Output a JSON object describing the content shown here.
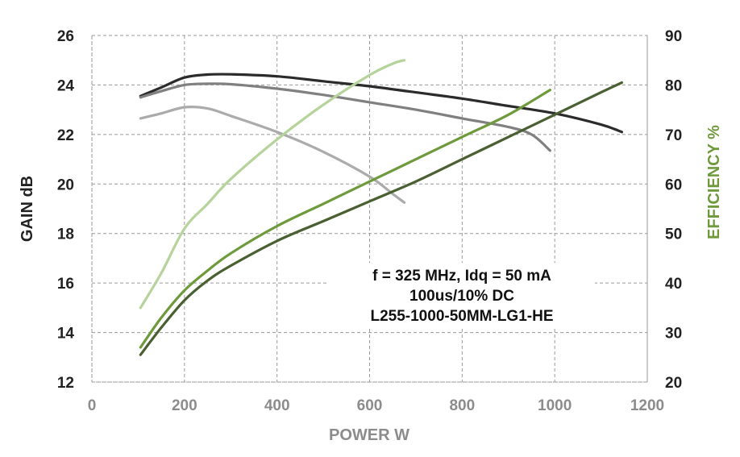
{
  "chart_data": {
    "type": "line",
    "xlabel": "POWER  W",
    "ylabel_left": "GAIN  dB",
    "ylabel_right": "EFFICIENCY  %",
    "xlim": [
      0,
      1200
    ],
    "ylim_left": [
      12,
      26
    ],
    "ylim_right": [
      20,
      90
    ],
    "x_ticks": [
      "0",
      "200",
      "400",
      "600",
      "800",
      "1000",
      "1200"
    ],
    "y_left_ticks": [
      "12",
      "14",
      "16",
      "18",
      "20",
      "22",
      "24",
      "26"
    ],
    "y_right_ticks": [
      "20",
      "30",
      "40",
      "50",
      "60",
      "70",
      "80",
      "90"
    ],
    "grid": true,
    "annotation": [
      "f = 325 MHz, Idq = 50 mA",
      "100us/10% DC",
      "L255-1000-50MM-LG1-HE"
    ],
    "colors": {
      "axis_text": "#222222",
      "x_axis_title": "#8c8c8c",
      "right_axis_title": "#6f9a3c",
      "grid": "#9a9a9a"
    },
    "series": [
      {
        "axis": "left",
        "color": "#2b2b2b",
        "x": [
          105,
          150,
          200,
          250,
          300,
          400,
          500,
          600,
          700,
          800,
          900,
          1000,
          1100,
          1145
        ],
        "y": [
          23.55,
          23.9,
          24.3,
          24.42,
          24.43,
          24.35,
          24.15,
          23.95,
          23.7,
          23.45,
          23.15,
          22.85,
          22.4,
          22.1
        ]
      },
      {
        "axis": "left",
        "color": "#808080",
        "x": [
          105,
          150,
          200,
          250,
          300,
          400,
          500,
          600,
          700,
          800,
          900,
          950,
          990
        ],
        "y": [
          23.5,
          23.75,
          24.0,
          24.05,
          24.03,
          23.85,
          23.6,
          23.3,
          23.0,
          22.65,
          22.3,
          22.0,
          21.35
        ]
      },
      {
        "axis": "left",
        "color": "#ababab",
        "x": [
          105,
          150,
          200,
          250,
          300,
          400,
          500,
          600,
          650,
          675
        ],
        "y": [
          22.65,
          22.85,
          23.1,
          23.05,
          22.75,
          22.1,
          21.3,
          20.3,
          19.6,
          19.25
        ]
      },
      {
        "axis": "right",
        "color": "#b5d39a",
        "x": [
          105,
          150,
          200,
          250,
          300,
          400,
          500,
          600,
          650,
          675
        ],
        "y": [
          35,
          42,
          51,
          56,
          61,
          69,
          76,
          82,
          84.3,
          85
        ]
      },
      {
        "axis": "right",
        "color": "#6f9a3c",
        "x": [
          105,
          150,
          200,
          250,
          300,
          400,
          500,
          600,
          700,
          800,
          900,
          990
        ],
        "y": [
          27,
          33,
          38.5,
          42.5,
          46,
          51.5,
          56,
          60.5,
          65,
          69.5,
          74,
          79
        ]
      },
      {
        "axis": "right",
        "color": "#4a5f32",
        "x": [
          105,
          150,
          200,
          250,
          300,
          400,
          500,
          600,
          700,
          800,
          900,
          1000,
          1100,
          1145
        ],
        "y": [
          25.5,
          31,
          36.5,
          40.5,
          43.5,
          48.5,
          52.5,
          56.5,
          60.5,
          65,
          69.5,
          74,
          78.5,
          80.5
        ]
      }
    ]
  }
}
